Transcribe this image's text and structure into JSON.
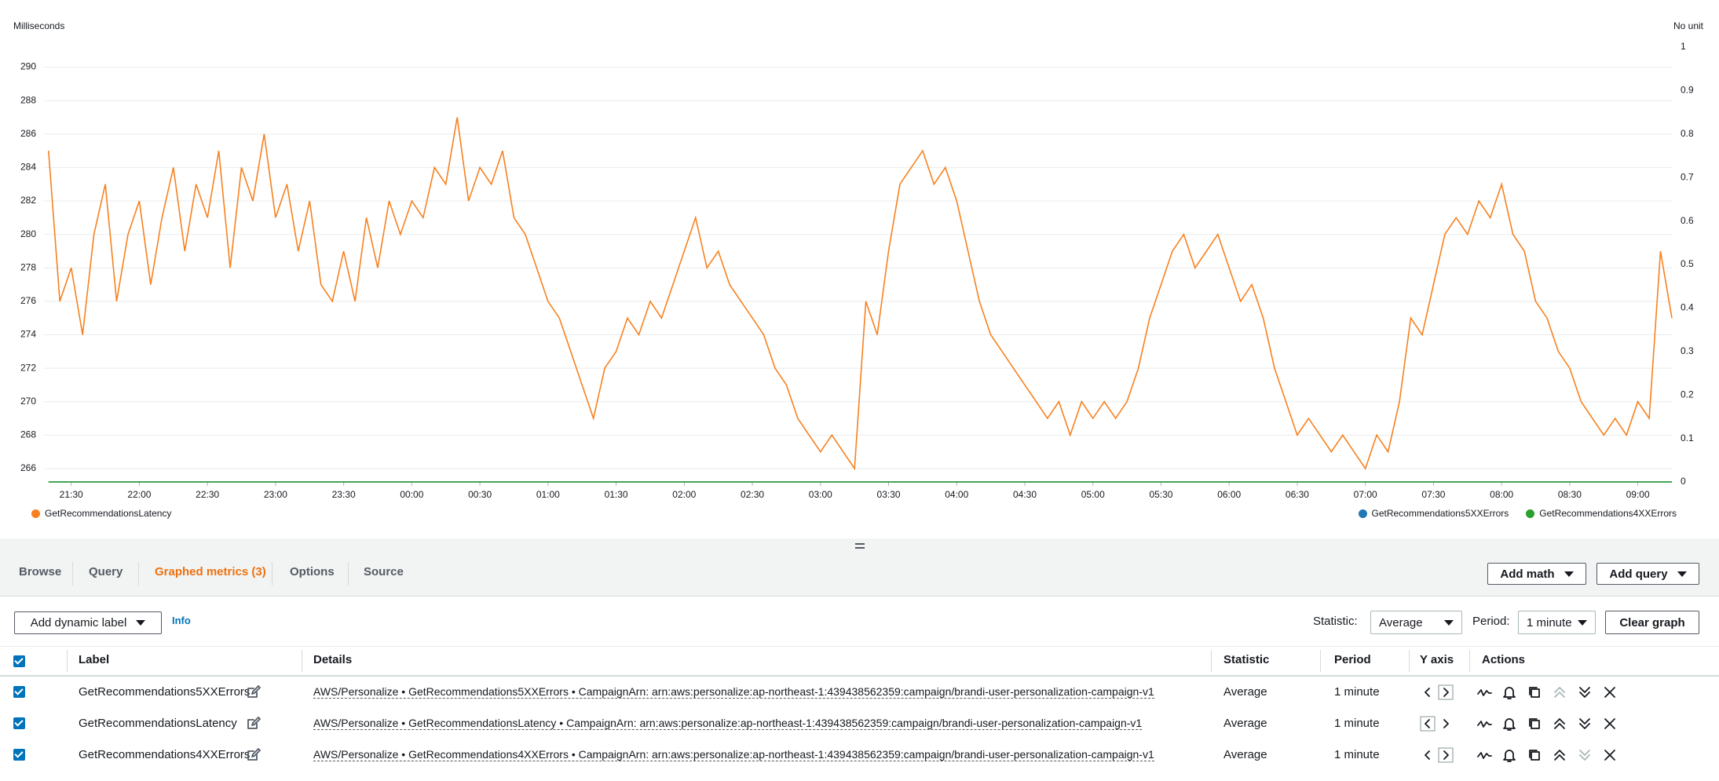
{
  "chart_data": {
    "type": "line",
    "ylabel": "Milliseconds",
    "y2label": "No unit",
    "x": [
      "21:20",
      "21:25",
      "21:30",
      "21:35",
      "21:40",
      "21:45",
      "21:50",
      "21:55",
      "22:00",
      "22:05",
      "22:10",
      "22:15",
      "22:20",
      "22:25",
      "22:30",
      "22:35",
      "22:40",
      "22:45",
      "22:50",
      "22:55",
      "23:00",
      "23:05",
      "23:10",
      "23:15",
      "23:20",
      "23:25",
      "23:30",
      "23:35",
      "23:40",
      "23:45",
      "23:50",
      "23:55",
      "00:00",
      "00:05",
      "00:10",
      "00:15",
      "00:20",
      "00:25",
      "00:30",
      "00:35",
      "00:40",
      "00:45",
      "00:50",
      "00:55",
      "01:00",
      "01:05",
      "01:10",
      "01:15",
      "01:20",
      "01:25",
      "01:30",
      "01:35",
      "01:40",
      "01:45",
      "01:50",
      "01:55",
      "02:00",
      "02:05",
      "02:10",
      "02:15",
      "02:20",
      "02:25",
      "02:30",
      "02:35",
      "02:40",
      "02:45",
      "02:50",
      "02:55",
      "03:00",
      "03:05",
      "03:10",
      "03:15",
      "03:20",
      "03:25",
      "03:30",
      "03:35",
      "03:40",
      "03:45",
      "03:50",
      "03:55",
      "04:00",
      "04:05",
      "04:10",
      "04:15",
      "04:20",
      "04:25",
      "04:30",
      "04:35",
      "04:40",
      "04:45",
      "04:50",
      "04:55",
      "05:00",
      "05:05",
      "05:10",
      "05:15",
      "05:20",
      "05:25",
      "05:30",
      "05:35",
      "05:40",
      "05:45",
      "05:50",
      "05:55",
      "06:00",
      "06:05",
      "06:10",
      "06:15",
      "06:20",
      "06:25",
      "06:30",
      "06:35",
      "06:40",
      "06:45",
      "06:50",
      "06:55",
      "07:00",
      "07:05",
      "07:10",
      "07:15",
      "07:20",
      "07:25",
      "07:30",
      "07:35",
      "07:40",
      "07:45",
      "07:50",
      "07:55",
      "08:00",
      "08:05",
      "08:10",
      "08:15",
      "08:20",
      "08:25",
      "08:30",
      "08:35",
      "08:40",
      "08:45",
      "08:50",
      "08:55",
      "09:00",
      "09:05",
      "09:10",
      "09:15"
    ],
    "xlim": [
      "21:18",
      "09:15"
    ],
    "xticks": [
      "21:30",
      "22:00",
      "22:30",
      "23:00",
      "23:30",
      "00:00",
      "00:30",
      "01:00",
      "01:30",
      "02:00",
      "02:30",
      "03:00",
      "03:30",
      "04:00",
      "04:30",
      "05:00",
      "05:30",
      "06:00",
      "06:30",
      "07:00",
      "07:30",
      "08:00",
      "08:30",
      "09:00"
    ],
    "ylim": [
      265.2,
      291.2
    ],
    "yticks": [
      266,
      268,
      270,
      272,
      274,
      276,
      278,
      280,
      282,
      284,
      286,
      288,
      290
    ],
    "y2lim": [
      0,
      1
    ],
    "y2ticks": [
      0,
      0.1,
      0.2,
      0.3,
      0.4,
      0.5,
      0.6,
      0.7,
      0.8,
      0.9,
      1
    ],
    "grid": true,
    "series": [
      {
        "name": "GetRecommendations5XXErrors",
        "color": "#1f77b4",
        "axis": "y2",
        "values": [
          0,
          0,
          0,
          0,
          0,
          0,
          0,
          0,
          0,
          0,
          0,
          0,
          0,
          0,
          0,
          0,
          0,
          0,
          0,
          0,
          0,
          0,
          0,
          0,
          0,
          0,
          0,
          0,
          0,
          0,
          0,
          0,
          0,
          0,
          0,
          0,
          0,
          0,
          0,
          0,
          0,
          0,
          0,
          0,
          0,
          0,
          0,
          0,
          0,
          0,
          0,
          0,
          0,
          0,
          0,
          0,
          0,
          0,
          0,
          0,
          0,
          0,
          0,
          0,
          0,
          0,
          0,
          0,
          0,
          0,
          0,
          0,
          0,
          0,
          0,
          0,
          0,
          0,
          0,
          0,
          0,
          0,
          0,
          0,
          0,
          0,
          0,
          0,
          0,
          0,
          0,
          0,
          0,
          0,
          0,
          0,
          0,
          0,
          0,
          0,
          0,
          0,
          0,
          0,
          0,
          0,
          0,
          0,
          0,
          0,
          0,
          0,
          0,
          0,
          0,
          0,
          0,
          0,
          0,
          0,
          0,
          0,
          0,
          0,
          0,
          0,
          0,
          0,
          0,
          0,
          0,
          0,
          0,
          0,
          0,
          0,
          0,
          0,
          0,
          0,
          0,
          0,
          0,
          0
        ]
      },
      {
        "name": "GetRecommendationsLatency",
        "color": "#f7811f",
        "values": [
          285,
          276,
          278,
          274,
          280,
          283,
          276,
          280,
          282,
          277,
          281,
          284,
          279,
          283,
          281,
          285,
          278,
          284,
          282,
          286,
          281,
          283,
          279,
          282,
          277,
          276,
          279,
          276,
          281,
          278,
          282,
          280,
          282,
          281,
          284,
          283,
          287,
          282,
          284,
          283,
          285,
          281,
          280,
          278,
          276,
          275,
          273,
          271,
          269,
          272,
          273,
          275,
          274,
          276,
          275,
          277,
          279,
          281,
          278,
          279,
          277,
          276,
          275,
          274,
          272,
          271,
          269,
          268,
          267,
          268,
          267,
          266,
          276,
          274,
          279,
          283,
          284,
          285,
          283,
          284,
          282,
          279,
          276,
          274,
          273,
          272,
          271,
          270,
          269,
          270,
          268,
          270,
          269,
          270,
          269,
          270,
          272,
          275,
          277,
          279,
          280,
          278,
          279,
          280,
          278,
          276,
          277,
          275,
          272,
          270,
          268,
          269,
          268,
          267,
          268,
          267,
          266,
          268,
          267,
          270,
          275,
          274,
          277,
          280,
          281,
          280,
          282,
          281,
          283,
          280,
          279,
          276,
          275,
          273,
          272,
          270,
          269,
          268,
          269,
          268,
          270,
          269,
          279,
          275
        ]
      },
      {
        "name": "GetRecommendations4XXErrors",
        "color": "#2ca02c",
        "axis": "y2",
        "values": [
          0,
          0,
          0,
          0,
          0,
          0,
          0,
          0,
          0,
          0,
          0,
          0,
          0,
          0,
          0,
          0,
          0,
          0,
          0,
          0,
          0,
          0,
          0,
          0,
          0,
          0,
          0,
          0,
          0,
          0,
          0,
          0,
          0,
          0,
          0,
          0,
          0,
          0,
          0,
          0,
          0,
          0,
          0,
          0,
          0,
          0,
          0,
          0,
          0,
          0,
          0,
          0,
          0,
          0,
          0,
          0,
          0,
          0,
          0,
          0,
          0,
          0,
          0,
          0,
          0,
          0,
          0,
          0,
          0,
          0,
          0,
          0,
          0,
          0,
          0,
          0,
          0,
          0,
          0,
          0,
          0,
          0,
          0,
          0,
          0,
          0,
          0,
          0,
          0,
          0,
          0,
          0,
          0,
          0,
          0,
          0,
          0,
          0,
          0,
          0,
          0,
          0,
          0,
          0,
          0,
          0,
          0,
          0,
          0,
          0,
          0,
          0,
          0,
          0,
          0,
          0,
          0,
          0,
          0,
          0,
          0,
          0,
          0,
          0,
          0,
          0,
          0,
          0,
          0,
          0,
          0,
          0,
          0,
          0,
          0,
          0,
          0,
          0,
          0,
          0,
          0,
          0,
          0,
          0
        ]
      }
    ]
  },
  "tabs": {
    "items": [
      "Browse",
      "Query",
      "Graphed metrics (3)",
      "Options",
      "Source"
    ],
    "active": 2
  },
  "toolbar": {
    "add_math": "Add math",
    "add_query": "Add query",
    "add_dynamic_label": "Add dynamic label",
    "info": "Info",
    "statistic_label": "Statistic:",
    "statistic": "Average",
    "period_label": "Period:",
    "period": "1 minute",
    "clear_graph": "Clear graph"
  },
  "table": {
    "headers": [
      "Label",
      "Details",
      "Statistic",
      "Period",
      "Y axis",
      "Actions"
    ],
    "rows": [
      {
        "details": "AWS/Personalize • GetRecommendations5XXErrors • CampaignArn: arn:aws:personalize:ap-northeast-1:439438562359:campaign/brandi-user-personalization-campaign-v1",
        "statistic": "Average",
        "period": "1 minute"
      },
      {
        "details": "AWS/Personalize • GetRecommendationsLatency • CampaignArn: arn:aws:personalize:ap-northeast-1:439438562359:campaign/brandi-user-personalization-campaign-v1",
        "statistic": "Average",
        "period": "1 minute"
      },
      {
        "details": "AWS/Personalize • GetRecommendations4XXErrors • CampaignArn: arn:aws:personalize:ap-northeast-1:439438562359:campaign/brandi-user-personalization-campaign-v1",
        "statistic": "Average",
        "period": "1 minute"
      }
    ]
  }
}
